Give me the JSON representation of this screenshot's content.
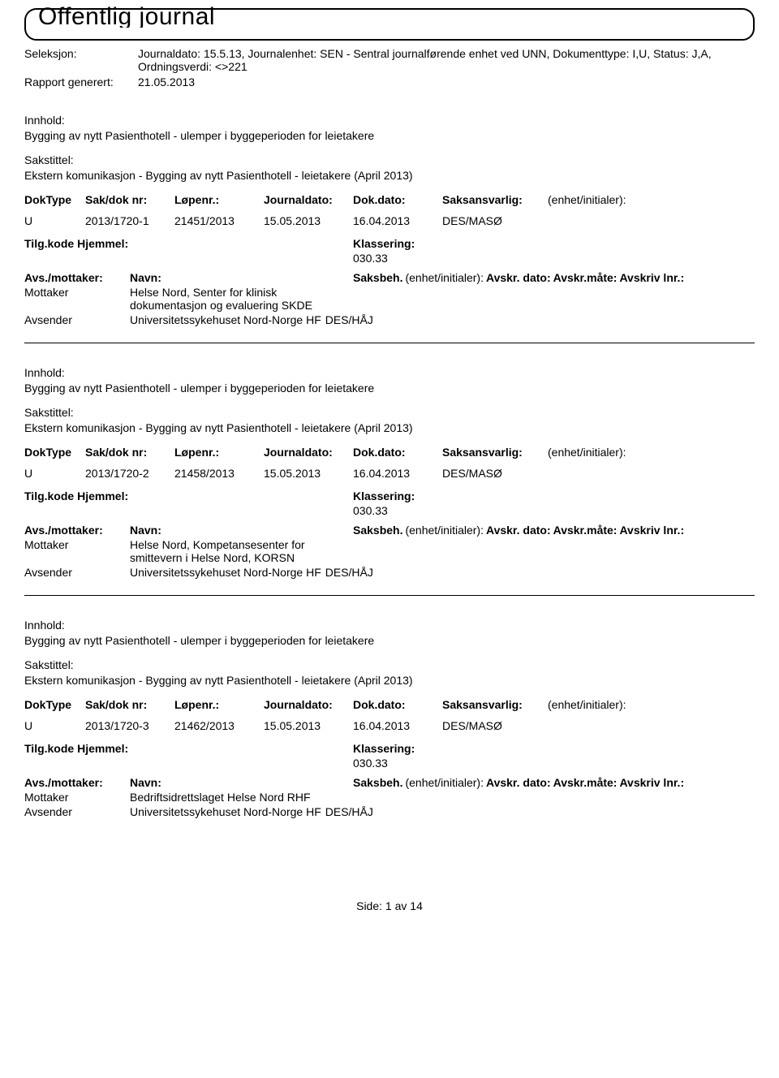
{
  "header": {
    "title": "Offentlig journal",
    "seleksjon_label": "Seleksjon:",
    "seleksjon_value": "Journaldato: 15.5.13, Journalenhet: SEN - Sentral journalførende enhet ved UNN, Dokumenttype: I,U, Status: J,A, Ordningsverdi: <>221",
    "rapport_label": "Rapport generert:",
    "rapport_value": "21.05.2013"
  },
  "labels": {
    "innhold": "Innhold:",
    "sakstittel": "Sakstittel:",
    "doktype": "DokType",
    "sakdok": "Sak/dok nr:",
    "lopenr": "Løpenr.:",
    "journaldato": "Journaldato:",
    "dokdato": "Dok.dato:",
    "saksansvarlig": "Saksansvarlig:",
    "enhet_initialer": "(enhet/initialer):",
    "tilgkode": "Tilg.kode",
    "hjemmel": "Hjemmel:",
    "klassering": "Klassering:",
    "avs_mottaker": "Avs./mottaker:",
    "navn": "Navn:",
    "saksbeh": "Saksbeh.",
    "saksbeh_enhet": "(enhet/initialer):",
    "avskr_dato": "Avskr. dato:",
    "avskr_mate": "Avskr.måte:",
    "avskriv_lnr": "Avskriv lnr.:",
    "mottaker": "Mottaker",
    "avsender": "Avsender"
  },
  "entries": [
    {
      "innhold": "Bygging av nytt Pasienthotell - ulemper i byggeperioden for leietakere",
      "sakstittel": "Ekstern komunikasjon - Bygging av nytt Pasienthotell - leietakere (April 2013)",
      "doktype": "U",
      "sakdok": "2013/1720-1",
      "lopenr": "21451/2013",
      "journaldato": "15.05.2013",
      "dokdato": "16.04.2013",
      "saksansvarlig": "DES/MASØ",
      "klassering": "030.33",
      "mottaker": "Helse Nord, Senter for klinisk dokumentasjon og evaluering SKDE",
      "avsender": "Universitetssykehuset Nord-Norge HF",
      "avsender_unit": "DES/HÅJ"
    },
    {
      "innhold": "Bygging av nytt Pasienthotell - ulemper i byggeperioden for leietakere",
      "sakstittel": "Ekstern komunikasjon - Bygging av nytt Pasienthotell - leietakere (April 2013)",
      "doktype": "U",
      "sakdok": "2013/1720-2",
      "lopenr": "21458/2013",
      "journaldato": "15.05.2013",
      "dokdato": "16.04.2013",
      "saksansvarlig": "DES/MASØ",
      "klassering": "030.33",
      "mottaker": "Helse Nord, Kompetansesenter for smittevern i Helse Nord, KORSN",
      "avsender": "Universitetssykehuset Nord-Norge HF",
      "avsender_unit": "DES/HÅJ"
    },
    {
      "innhold": "Bygging av nytt Pasienthotell - ulemper i byggeperioden for leietakere",
      "sakstittel": "Ekstern komunikasjon - Bygging av nytt Pasienthotell - leietakere (April 2013)",
      "doktype": "U",
      "sakdok": "2013/1720-3",
      "lopenr": "21462/2013",
      "journaldato": "15.05.2013",
      "dokdato": "16.04.2013",
      "saksansvarlig": "DES/MASØ",
      "klassering": "030.33",
      "mottaker": "Bedriftsidrettslaget Helse Nord RHF",
      "avsender": "Universitetssykehuset Nord-Norge HF",
      "avsender_unit": "DES/HÅJ"
    }
  ],
  "footer": {
    "side_label": "Side:",
    "page_current": "1",
    "av": "av",
    "page_total": "14"
  }
}
